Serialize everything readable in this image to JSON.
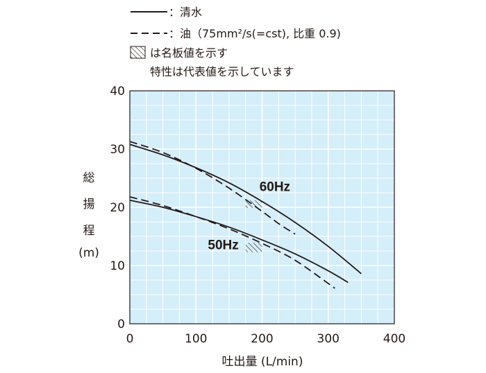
{
  "chart_data": {
    "type": "line",
    "title": "",
    "xlabel": "吐出量 (L/min)",
    "ylabel": [
      "総",
      "揚",
      "程",
      "(m)"
    ],
    "xlim": [
      0,
      400
    ],
    "ylim": [
      0,
      40
    ],
    "x_ticks": [
      "0",
      "100",
      "200",
      "300",
      "400"
    ],
    "y_ticks": [
      "0",
      "10",
      "20",
      "30",
      "40"
    ],
    "grid": true,
    "background_color": "#d4eefa",
    "grid_color": "#ffffff",
    "line_color": "#231815",
    "legend": {
      "placement": "top",
      "entries": [
        {
          "style": "solid",
          "label": "：清水"
        },
        {
          "style": "dashed",
          "label": "：油（75mm²/s(=cst), 比重 0.9)"
        },
        {
          "style": "hatch",
          "label": "は名板値を示す"
        },
        {
          "style": "none",
          "label": "特性は代表値を示しています"
        }
      ]
    },
    "series": [
      {
        "group": "60Hz",
        "style": "solid",
        "x": [
          0,
          50,
          100,
          150,
          200,
          250,
          300,
          350
        ],
        "y": [
          30.8,
          29.0,
          26.8,
          24.2,
          21.0,
          17.4,
          13.3,
          8.6
        ]
      },
      {
        "group": "60Hz",
        "style": "dashed",
        "x": [
          0,
          50,
          100,
          150,
          200,
          225,
          250
        ],
        "y": [
          31.3,
          29.4,
          26.7,
          23.3,
          19.3,
          17.2,
          15.4
        ]
      },
      {
        "group": "50Hz",
        "style": "solid",
        "x": [
          0,
          50,
          100,
          150,
          200,
          250,
          300,
          330
        ],
        "y": [
          21.2,
          20.0,
          18.4,
          16.6,
          14.4,
          12.0,
          9.1,
          7.1
        ]
      },
      {
        "group": "50Hz",
        "style": "dashed",
        "x": [
          0,
          50,
          100,
          150,
          200,
          250,
          310
        ],
        "y": [
          21.8,
          20.3,
          18.4,
          16.3,
          13.8,
          10.9,
          6.1
        ]
      }
    ],
    "rated_regions": [
      {
        "group": "60Hz",
        "x": [
          175,
          200
        ],
        "y": [
          19.9,
          21.2
        ]
      },
      {
        "group": "50Hz",
        "x": [
          175,
          200
        ],
        "y": [
          12.3,
          13.9
        ]
      }
    ],
    "annotations": [
      {
        "text": "60Hz",
        "x": 196,
        "y": 22.8
      },
      {
        "text": "50Hz",
        "x": 118,
        "y": 12.8
      }
    ]
  }
}
